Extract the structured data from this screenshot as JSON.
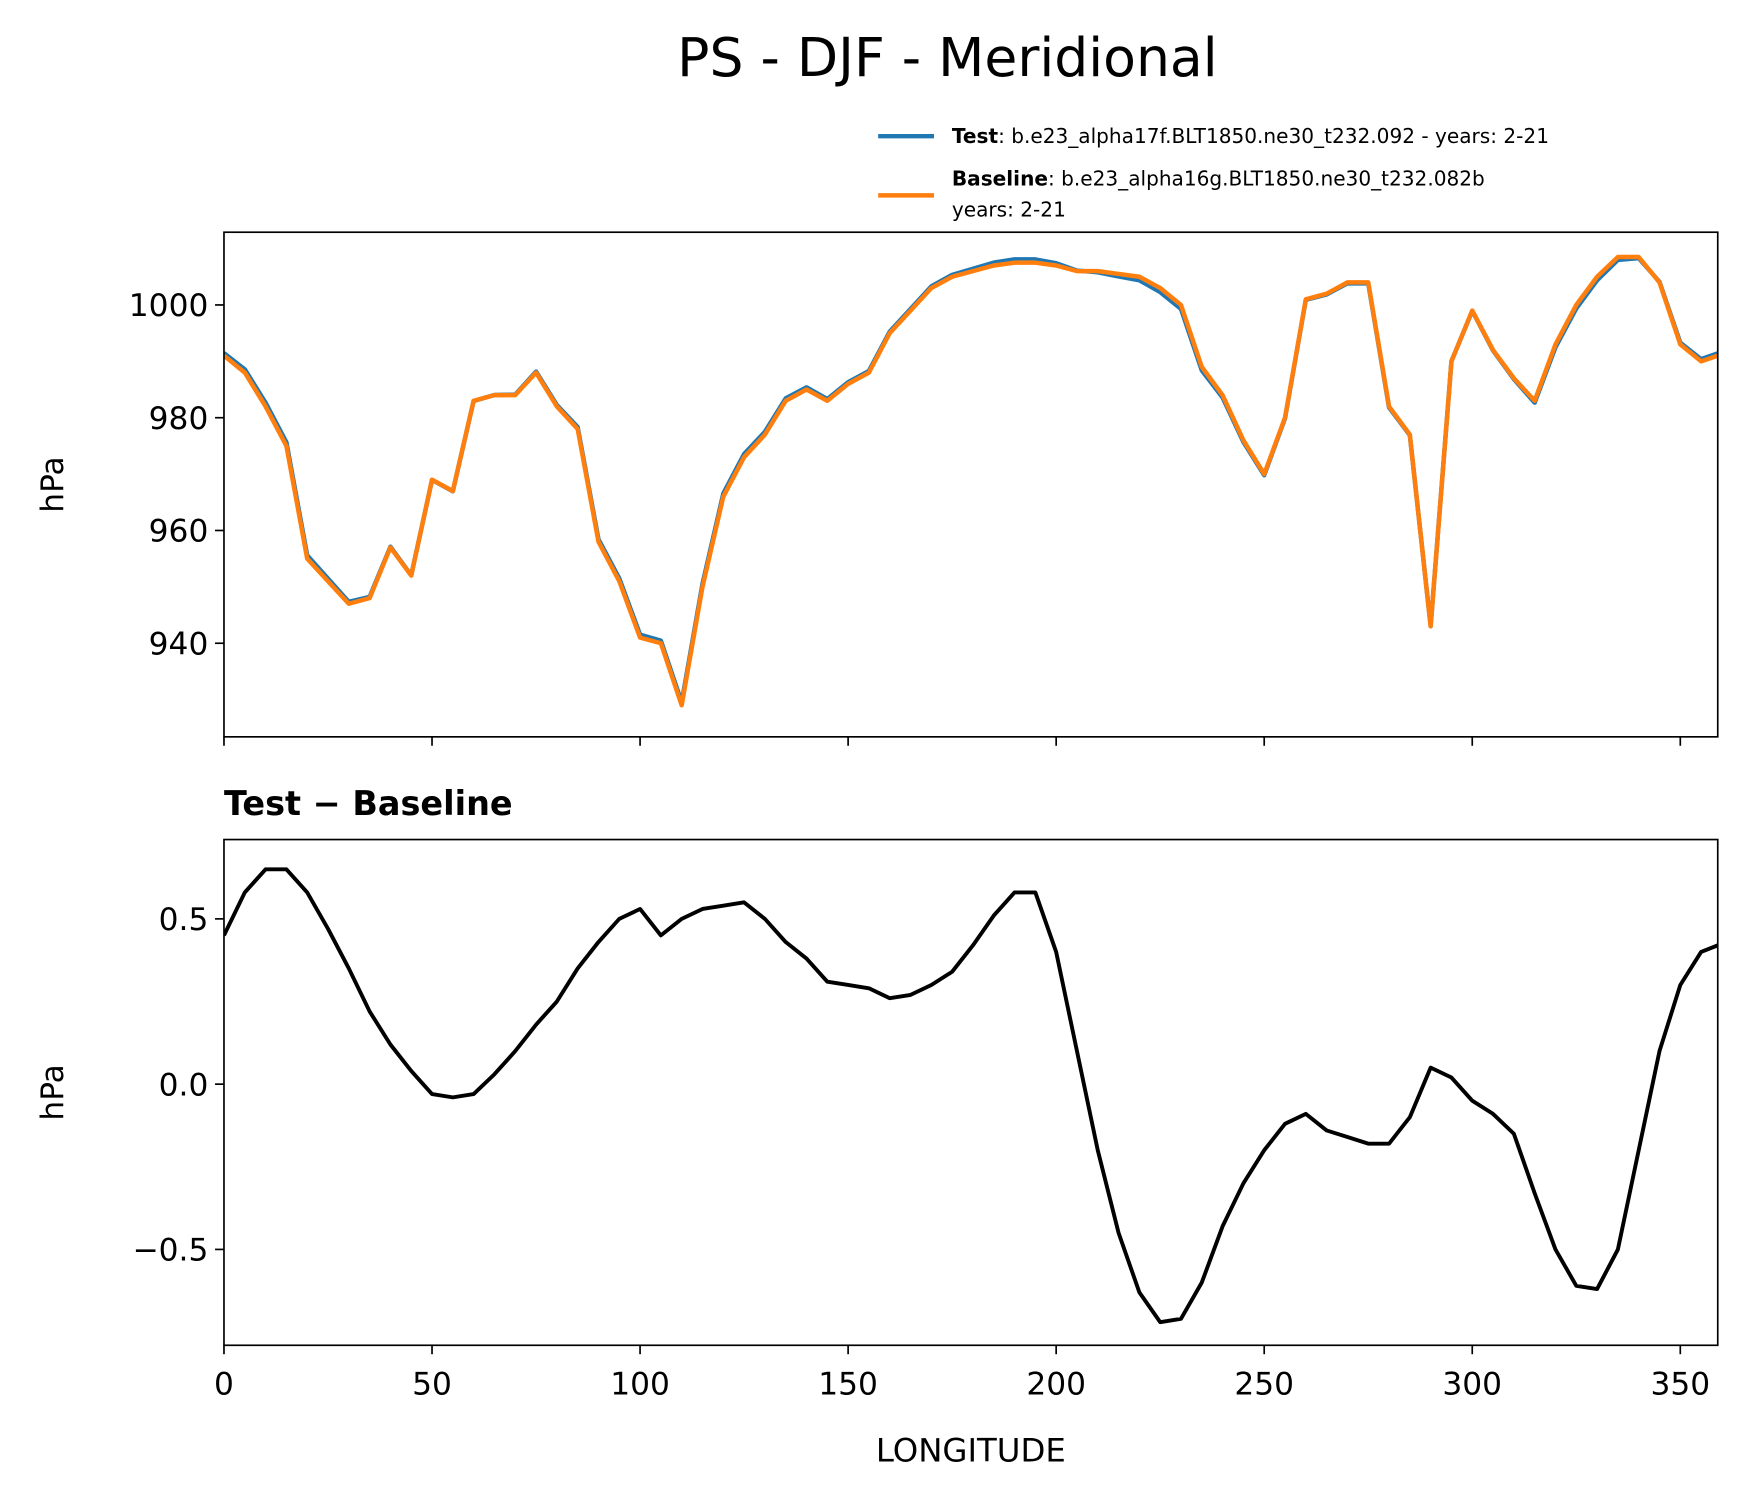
{
  "chart_data": [
    {
      "type": "line",
      "title": "PS - DJF - Meridional",
      "ylabel": "hPa",
      "x": [
        0,
        5,
        10,
        15,
        20,
        25,
        30,
        35,
        40,
        45,
        50,
        55,
        60,
        65,
        70,
        75,
        80,
        85,
        90,
        95,
        100,
        105,
        110,
        115,
        120,
        125,
        130,
        135,
        140,
        145,
        150,
        155,
        160,
        165,
        170,
        175,
        180,
        185,
        190,
        195,
        200,
        205,
        210,
        215,
        220,
        225,
        230,
        235,
        240,
        245,
        250,
        255,
        260,
        265,
        270,
        275,
        280,
        285,
        290,
        295,
        300,
        305,
        310,
        315,
        320,
        325,
        330,
        335,
        340,
        345,
        350,
        355,
        359
      ],
      "series": [
        {
          "name": "Test",
          "description_lines": [
            ": b.e23_alpha17f.BLT1850.ne30_t232.092 - years: 2-21"
          ],
          "color": "#1f77b4",
          "values": [
            991.45,
            988.58,
            982.65,
            975.65,
            955.58,
            951.47,
            947.35,
            948.22,
            957.12,
            952.04,
            968.97,
            966.96,
            982.97,
            984.03,
            984.1,
            988.18,
            982.25,
            978.35,
            958.43,
            951.5,
            941.53,
            940.45,
            929.5,
            950.53,
            966.54,
            973.55,
            977.5,
            983.43,
            985.38,
            983.31,
            986.3,
            988.29,
            995.26,
            999.27,
            1003.3,
            1005.34,
            1006.42,
            1007.51,
            1008.08,
            1008.08,
            1007.4,
            1006.1,
            1005.8,
            1005.05,
            1004.37,
            1002.28,
            999.29,
            988.4,
            983.57,
            975.7,
            969.8,
            979.88,
            1000.91,
            1001.86,
            1003.84,
            1003.82,
            981.82,
            976.9,
            943.05,
            990.02,
            998.95,
            991.91,
            986.85,
            982.67,
            992.5,
            999.39,
            1004.38,
            1008.0,
            1008.3,
            1004.1,
            993.3,
            990.4,
            991.42
          ]
        },
        {
          "name": "Baseline",
          "description_lines": [
            ": b.e23_alpha16g.BLT1850.ne30_t232.082b",
            "years: 2-21"
          ],
          "color": "#ff7f0e",
          "values": [
            991,
            988,
            982,
            975,
            955,
            951,
            947,
            948,
            957,
            952,
            969,
            967,
            983,
            984,
            984,
            988,
            982,
            978,
            958,
            951,
            941,
            940,
            929,
            950,
            966,
            973,
            977,
            983,
            985,
            983,
            986,
            988,
            995,
            999,
            1003,
            1005,
            1006,
            1007,
            1007.5,
            1007.5,
            1007,
            1006,
            1006,
            1005.5,
            1005,
            1003,
            1000,
            989,
            984,
            976,
            970,
            980,
            1001,
            1002,
            1004,
            1004,
            982,
            977,
            943,
            990,
            999,
            992,
            987,
            983,
            993,
            1000,
            1005,
            1008.5,
            1008.5,
            1004,
            993,
            990,
            991
          ]
        }
      ],
      "xlim": [
        0,
        359
      ],
      "xticks": [
        0,
        50,
        100,
        150,
        200,
        250,
        300,
        350
      ],
      "ylim": [
        923.4,
        1012.9
      ],
      "yticks": [
        940,
        960,
        980,
        1000
      ]
    },
    {
      "type": "line",
      "title": "Test − Baseline",
      "ylabel": "hPa",
      "xlabel": "LONGITUDE",
      "x": [
        0,
        5,
        10,
        15,
        20,
        25,
        30,
        35,
        40,
        45,
        50,
        55,
        60,
        65,
        70,
        75,
        80,
        85,
        90,
        95,
        100,
        105,
        110,
        115,
        120,
        125,
        130,
        135,
        140,
        145,
        150,
        155,
        160,
        165,
        170,
        175,
        180,
        185,
        190,
        195,
        200,
        205,
        210,
        215,
        220,
        225,
        230,
        235,
        240,
        245,
        250,
        255,
        260,
        265,
        270,
        275,
        280,
        285,
        290,
        295,
        300,
        305,
        310,
        315,
        320,
        325,
        330,
        335,
        340,
        345,
        350,
        355,
        359
      ],
      "series": [
        {
          "color": "#000000",
          "values": [
            0.45,
            0.58,
            0.65,
            0.65,
            0.58,
            0.47,
            0.35,
            0.22,
            0.12,
            0.04,
            -0.03,
            -0.04,
            -0.03,
            0.03,
            0.1,
            0.18,
            0.25,
            0.35,
            0.43,
            0.5,
            0.53,
            0.45,
            0.5,
            0.53,
            0.54,
            0.55,
            0.5,
            0.43,
            0.38,
            0.31,
            0.3,
            0.29,
            0.26,
            0.27,
            0.3,
            0.34,
            0.42,
            0.51,
            0.58,
            0.58,
            0.4,
            0.1,
            -0.2,
            -0.45,
            -0.63,
            -0.72,
            -0.71,
            -0.6,
            -0.43,
            -0.3,
            -0.2,
            -0.12,
            -0.09,
            -0.14,
            -0.16,
            -0.18,
            -0.18,
            -0.1,
            0.05,
            0.02,
            -0.05,
            -0.09,
            -0.15,
            -0.33,
            -0.5,
            -0.61,
            -0.62,
            -0.5,
            -0.2,
            0.1,
            0.3,
            0.4,
            0.42
          ]
        }
      ],
      "xlim": [
        0,
        359
      ],
      "xticks": [
        0,
        50,
        100,
        150,
        200,
        250,
        300,
        350
      ],
      "ylim": [
        -0.79,
        0.74
      ],
      "yticks": [
        {
          "value": -0.5,
          "label": "−0.5"
        },
        {
          "value": 0,
          "label": "0.0"
        },
        0.5
      ]
    }
  ]
}
